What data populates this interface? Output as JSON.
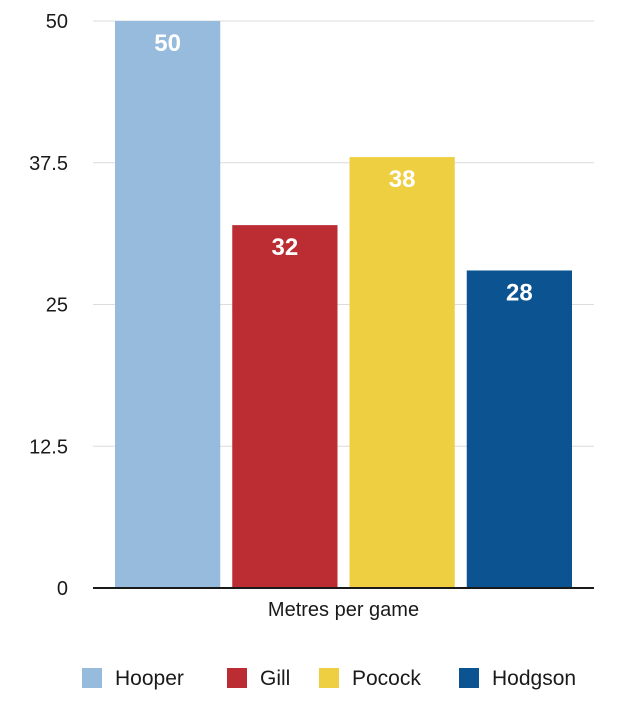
{
  "chart_data": {
    "type": "bar",
    "categories": [
      "Metres per game"
    ],
    "series": [
      {
        "name": "Hooper",
        "values": [
          50
        ],
        "color": "#97bbdc",
        "label": "50"
      },
      {
        "name": "Gill",
        "values": [
          32
        ],
        "color": "#bb2d33",
        "label": "32"
      },
      {
        "name": "Pocock",
        "values": [
          38
        ],
        "color": "#efcf42",
        "label": "38"
      },
      {
        "name": "Hodgson",
        "values": [
          28
        ],
        "color": "#0b5391",
        "label": "28"
      }
    ],
    "yticks": [
      "0",
      "12.5",
      "25",
      "37.5",
      "50"
    ],
    "ylim": [
      0,
      50
    ],
    "grid": true,
    "legend": "bottom"
  }
}
